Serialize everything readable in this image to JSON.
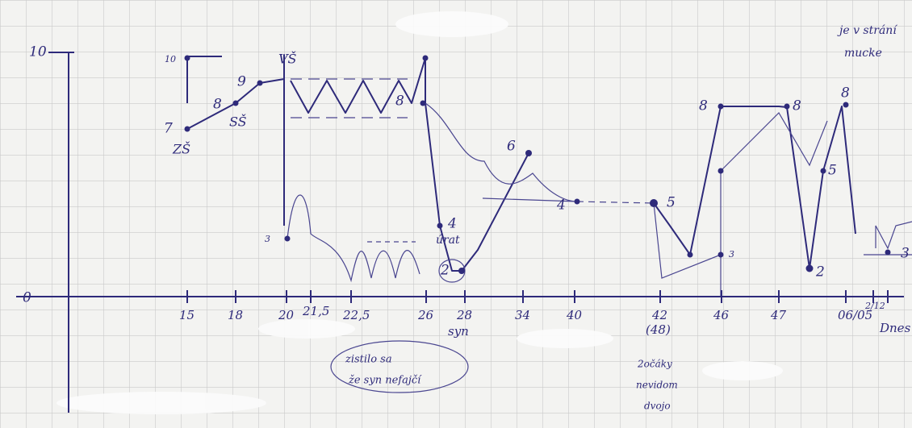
{
  "y_axis": [
    "10",
    "0"
  ],
  "x_axis": [
    "15",
    "18",
    "20",
    "21,5",
    "22,5",
    "26",
    "28",
    "34",
    "40",
    "42",
    "(48)",
    "46",
    "47",
    "06/05",
    "2/12",
    "Dnes",
    "syn"
  ],
  "milestones": [
    "ZŠ",
    "SŠ",
    "VŠ"
  ],
  "point_labels": [
    "7",
    "8",
    "9",
    "10",
    "8",
    "3",
    "4",
    "2",
    "6",
    "4",
    "5",
    "3",
    "8",
    "8",
    "5",
    "2",
    "8",
    "3"
  ],
  "notes": [
    "úrat",
    "zistilo sa",
    "že syn nefajčí",
    "2očáky",
    "nevidom",
    "dvojo",
    "je v strání",
    "mucke"
  ]
}
